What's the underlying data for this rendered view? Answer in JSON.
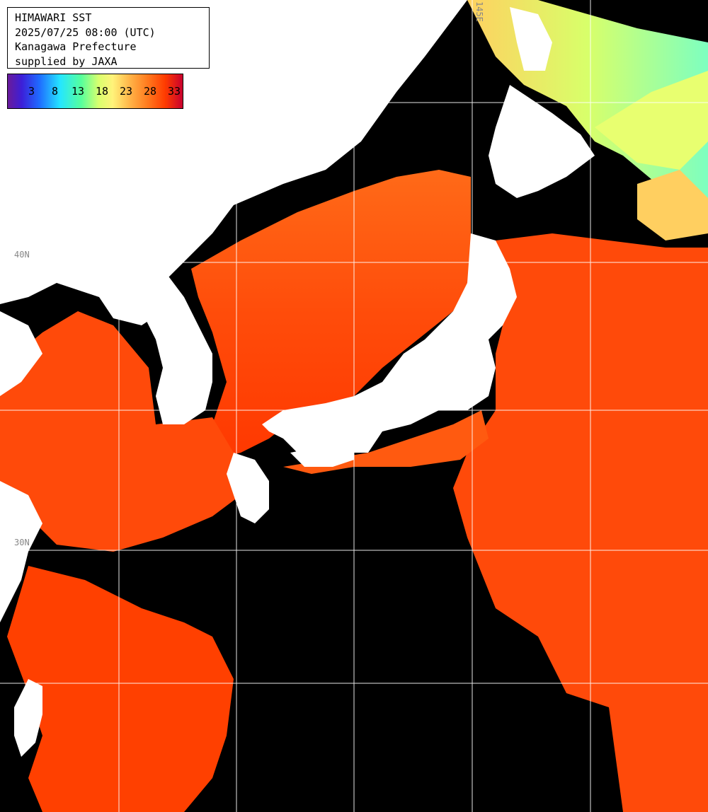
{
  "header": {
    "line1": "HIMAWARI SST",
    "line2": "2025/07/25 08:00 (UTC)",
    "line3": "Kanagawa Prefecture",
    "line4": "supplied by JAXA"
  },
  "legend": {
    "ticks": [
      "3",
      "8",
      "13",
      "18",
      "23",
      "28",
      "33"
    ]
  },
  "grid_labels": {
    "top_lon": "145E",
    "left_lat_upper": "40N",
    "left_lat_lower": "30N"
  },
  "colors": {
    "land": "#ffffff",
    "no_data": "#000000",
    "warm_sea": "#ff4a0a",
    "hot_sea": "#ff3000",
    "cool_sea": "#ff8a30",
    "cold_sea": "#c7ff70",
    "grid": "#ffffff"
  }
}
